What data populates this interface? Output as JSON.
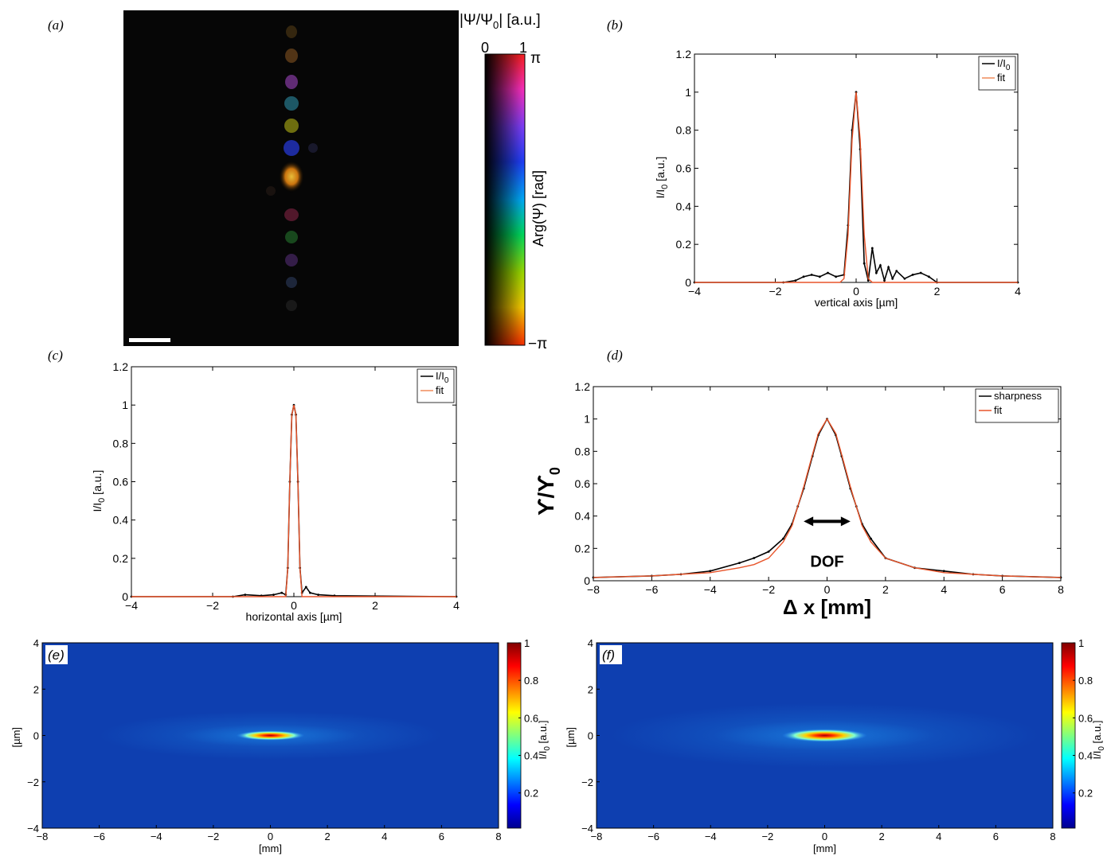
{
  "panel_labels": {
    "a": "(a)",
    "b": "(b)",
    "c": "(c)",
    "d": "(d)",
    "e": "(e)",
    "f": "(f)"
  },
  "colorbar_a": {
    "magnitude_label": "|Ψ/Ψ",
    "magnitude_sub": "0",
    "magnitude_unit": "| [a.u.]",
    "magnitude_min": "0",
    "magnitude_max": "1",
    "phase_label": "Arg(Ψ) [rad]",
    "phase_top": "π",
    "phase_bottom": "−π"
  },
  "dof_label": "DOF",
  "chart_data": [
    {
      "id": "b",
      "type": "line",
      "xlabel": "vertical axis [µm]",
      "ylabel": "I/I",
      "ylabel_sub": "0",
      "ylabel_unit": " [a.u.]",
      "xlim": [
        -4,
        4
      ],
      "ylim": [
        0,
        1.2
      ],
      "xticks": [
        -4,
        -2,
        0,
        2,
        4
      ],
      "yticks": [
        0,
        0.2,
        0.4,
        0.6,
        0.8,
        1,
        1.2
      ],
      "legend": {
        "placement": "top-right",
        "entries": [
          {
            "label": "I/I",
            "sub": "0",
            "color": "#000000"
          },
          {
            "label": "fit",
            "sub": "",
            "color": "#f08a5a"
          }
        ]
      },
      "series": [
        {
          "name": "I/I0",
          "color": "#000000",
          "x": [
            -4,
            -1.8,
            -1.5,
            -1.3,
            -1.1,
            -0.9,
            -0.7,
            -0.5,
            -0.3,
            -0.2,
            -0.1,
            0,
            0.1,
            0.2,
            0.3,
            0.4,
            0.5,
            0.6,
            0.7,
            0.8,
            0.9,
            1.0,
            1.2,
            1.4,
            1.6,
            1.8,
            2.0,
            4
          ],
          "y": [
            0,
            0,
            0.01,
            0.03,
            0.04,
            0.03,
            0.05,
            0.03,
            0.04,
            0.3,
            0.8,
            1.0,
            0.7,
            0.1,
            0.01,
            0.18,
            0.05,
            0.09,
            0.01,
            0.08,
            0.02,
            0.06,
            0.02,
            0.04,
            0.05,
            0.03,
            0,
            0
          ]
        },
        {
          "name": "fit",
          "color": "#e8542a",
          "x": [
            -4,
            -0.4,
            -0.3,
            -0.2,
            -0.1,
            0,
            0.1,
            0.2,
            0.3,
            0.4,
            4
          ],
          "y": [
            0,
            0,
            0.02,
            0.25,
            0.75,
            1.0,
            0.75,
            0.25,
            0.02,
            0,
            0
          ]
        }
      ]
    },
    {
      "id": "c",
      "type": "line",
      "xlabel": "horizontal axis [µm]",
      "ylabel": "I/I",
      "ylabel_sub": "0",
      "ylabel_unit": " [a.u.]",
      "xlim": [
        -4,
        4
      ],
      "ylim": [
        0,
        1.2
      ],
      "xticks": [
        -4,
        -2,
        0,
        2,
        4
      ],
      "yticks": [
        0,
        0.2,
        0.4,
        0.6,
        0.8,
        1,
        1.2
      ],
      "legend": {
        "placement": "top-right",
        "entries": [
          {
            "label": "I/I",
            "sub": "0",
            "color": "#000000"
          },
          {
            "label": "fit",
            "sub": "",
            "color": "#f08a5a"
          }
        ]
      },
      "series": [
        {
          "name": "I/I0",
          "color": "#000000",
          "x": [
            -4,
            -1.5,
            -1.2,
            -0.8,
            -0.5,
            -0.3,
            -0.2,
            -0.15,
            -0.1,
            -0.05,
            0,
            0.05,
            0.1,
            0.15,
            0.2,
            0.3,
            0.4,
            0.6,
            1.0,
            4
          ],
          "y": [
            0,
            0,
            0.01,
            0.005,
            0.01,
            0.02,
            0.01,
            0.15,
            0.6,
            0.95,
            1.0,
            0.95,
            0.6,
            0.15,
            0.02,
            0.05,
            0.02,
            0.01,
            0.005,
            0
          ]
        },
        {
          "name": "fit",
          "color": "#e8542a",
          "x": [
            -4,
            -0.2,
            -0.15,
            -0.1,
            -0.05,
            0,
            0.05,
            0.1,
            0.15,
            0.2,
            4
          ],
          "y": [
            0,
            0,
            0.15,
            0.6,
            0.95,
            1.0,
            0.95,
            0.6,
            0.15,
            0,
            0
          ]
        }
      ]
    },
    {
      "id": "d",
      "type": "line",
      "xlabel": "Δ x  [mm]",
      "ylabel": "ϒ/ϒ",
      "ylabel_sub": "0",
      "xlim": [
        -8,
        8
      ],
      "ylim": [
        0,
        1.2
      ],
      "xticks": [
        -8,
        -6,
        -4,
        -2,
        0,
        2,
        4,
        6,
        8
      ],
      "yticks": [
        0,
        0.2,
        0.4,
        0.6,
        0.8,
        1,
        1.2
      ],
      "legend": {
        "placement": "top-right",
        "entries": [
          {
            "label": "sharpness",
            "sub": "",
            "color": "#000000"
          },
          {
            "label": "fit",
            "sub": "",
            "color": "#e8542a"
          }
        ]
      },
      "series": [
        {
          "name": "sharpness",
          "color": "#000000",
          "x": [
            -8,
            -6,
            -5,
            -4,
            -3,
            -2.5,
            -2,
            -1.5,
            -1.2,
            -1.0,
            -0.8,
            -0.5,
            -0.3,
            0,
            0.3,
            0.5,
            0.8,
            1.0,
            1.2,
            1.5,
            2,
            3,
            4,
            5,
            6,
            8
          ],
          "y": [
            0.02,
            0.03,
            0.04,
            0.06,
            0.11,
            0.14,
            0.18,
            0.26,
            0.35,
            0.46,
            0.57,
            0.77,
            0.9,
            1.0,
            0.9,
            0.77,
            0.57,
            0.46,
            0.35,
            0.26,
            0.14,
            0.08,
            0.06,
            0.04,
            0.03,
            0.02
          ]
        },
        {
          "name": "fit",
          "color": "#e8542a",
          "x": [
            -8,
            -6,
            -5,
            -4,
            -3,
            -2.5,
            -2,
            -1.5,
            -1.2,
            -1.0,
            -0.8,
            -0.5,
            -0.3,
            0,
            0.3,
            0.5,
            0.8,
            1.0,
            1.2,
            1.5,
            2,
            3,
            4,
            5,
            6,
            8
          ],
          "y": [
            0.02,
            0.03,
            0.04,
            0.05,
            0.08,
            0.1,
            0.14,
            0.24,
            0.34,
            0.46,
            0.58,
            0.78,
            0.91,
            1.0,
            0.91,
            0.78,
            0.58,
            0.46,
            0.34,
            0.24,
            0.14,
            0.08,
            0.05,
            0.04,
            0.03,
            0.02
          ]
        }
      ],
      "annotation": {
        "text": "DOF",
        "x_from": -0.8,
        "x_to": 0.8,
        "y": 0.5
      }
    },
    {
      "id": "e",
      "type": "heatmap",
      "xlabel": "[mm]",
      "ylabel": "[µm]",
      "xlim": [
        -8,
        8
      ],
      "ylim": [
        -4,
        4
      ],
      "xticks": [
        -8,
        -6,
        -4,
        -2,
        0,
        2,
        4,
        6,
        8
      ],
      "yticks": [
        -4,
        -2,
        0,
        2,
        4
      ],
      "colorbar": {
        "ticks": [
          "1",
          "0.8",
          "0.6",
          "0.4",
          "0.2"
        ],
        "label": "I/I",
        "label_sub": "0",
        "label_unit": " [a.u.]"
      },
      "peak": {
        "x": 0,
        "y": 0,
        "half_width_mm": 1.2,
        "half_height_um": 0.15
      }
    },
    {
      "id": "f",
      "type": "heatmap",
      "xlabel": "[mm]",
      "ylabel": "[µm]",
      "xlim": [
        -8,
        8
      ],
      "ylim": [
        -4,
        4
      ],
      "xticks": [
        -8,
        -6,
        -4,
        -2,
        0,
        2,
        4,
        6,
        8
      ],
      "yticks": [
        -4,
        -2,
        0,
        2,
        4
      ],
      "colorbar": {
        "ticks": [
          "1",
          "0.8",
          "0.6",
          "0.4",
          "0.2"
        ],
        "label": "I/I",
        "label_sub": "0",
        "label_unit": " [a.u.]"
      },
      "peak": {
        "x": 0,
        "y": 0,
        "half_width_mm": 1.5,
        "half_height_um": 0.2
      }
    }
  ]
}
